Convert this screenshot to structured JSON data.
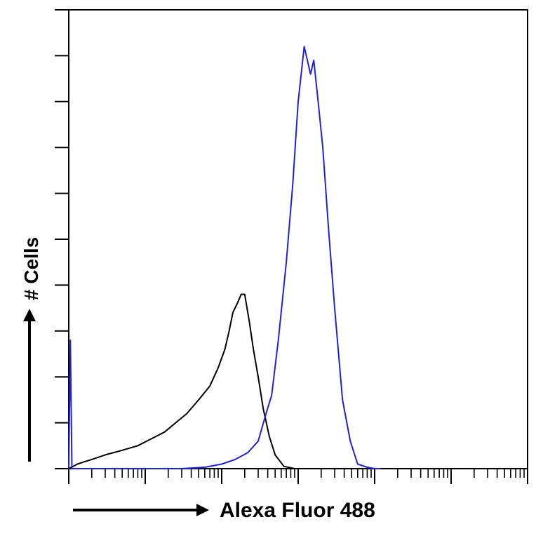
{
  "chart_data": {
    "type": "line",
    "title": "",
    "xlabel": "Alexa Fluor 488",
    "ylabel": "# Cells",
    "x_scale": "log",
    "xlim": [
      1,
      1000000
    ],
    "ylim": [
      0,
      100
    ],
    "grid": false,
    "legend": "none",
    "series": [
      {
        "color": "#000000",
        "x": [
          1,
          1.3,
          1.6,
          2,
          3,
          5,
          8,
          12,
          18,
          25,
          35,
          50,
          70,
          90,
          110,
          125,
          140,
          160,
          180,
          200,
          230,
          260,
          300,
          350,
          420,
          500,
          650,
          900
        ],
        "y": [
          0,
          1,
          1.5,
          2,
          3,
          4,
          5,
          6.5,
          8,
          10,
          12,
          15,
          18,
          22,
          26,
          30,
          34,
          36,
          38,
          38,
          32,
          26,
          20,
          13,
          7,
          3,
          0.5,
          0
        ]
      },
      {
        "color": "#2020e0",
        "x": [
          1,
          1.05,
          1.1,
          30,
          60,
          100,
          150,
          220,
          300,
          380,
          450,
          550,
          700,
          850,
          1000,
          1200,
          1450,
          1600,
          1800,
          2100,
          2500,
          3000,
          3800,
          4800,
          6000,
          8000,
          10000,
          12000
        ],
        "y": [
          0,
          28,
          0,
          0,
          0.3,
          1,
          2,
          3.5,
          6,
          12,
          16,
          28,
          45,
          62,
          80,
          92,
          86,
          89,
          81,
          70,
          52,
          35,
          15,
          6,
          1,
          0.3,
          0,
          0
        ]
      }
    ]
  }
}
